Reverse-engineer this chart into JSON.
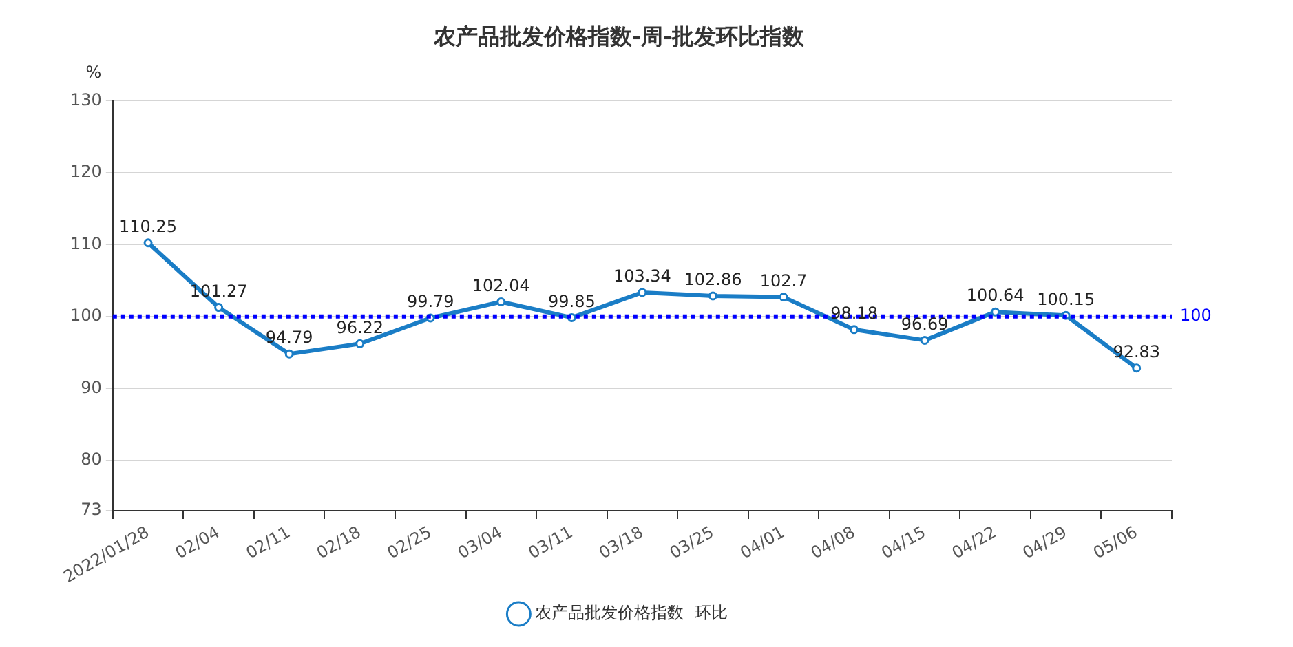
{
  "chart_data": {
    "type": "line",
    "title": "农产品批发价格指数-周-批发环比指数",
    "ylabel": "%",
    "categories": [
      "2022/01/28",
      "02/04",
      "02/11",
      "02/18",
      "02/25",
      "03/04",
      "03/11",
      "03/18",
      "03/25",
      "04/01",
      "04/08",
      "04/15",
      "04/22",
      "04/29",
      "05/06"
    ],
    "series": [
      {
        "name": "农产品批发价格指数  环比",
        "color": "#1a7dc6",
        "values": [
          110.25,
          101.27,
          94.79,
          96.22,
          99.79,
          102.04,
          99.85,
          103.34,
          102.86,
          102.7,
          98.18,
          96.69,
          100.64,
          100.15,
          92.83
        ]
      }
    ],
    "ylim": [
      73,
      130
    ],
    "yticks": [
      73,
      80,
      90,
      100,
      110,
      120,
      130
    ],
    "ref_lines": [
      {
        "axis": "y",
        "value": 100,
        "label": "100",
        "color": "#0000ff",
        "line_style": "dotted"
      }
    ],
    "data_labels": true,
    "grid": "y",
    "legend": "bottom",
    "marker": "circle",
    "line_style": "solid"
  }
}
